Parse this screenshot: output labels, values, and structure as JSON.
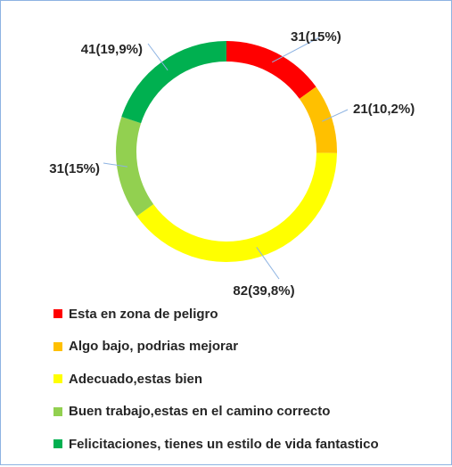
{
  "chart_data": {
    "type": "pie",
    "donut": true,
    "categories": [
      "Esta en zona de peligro",
      "Algo bajo, podrias mejorar",
      "Adecuado,estas bien",
      "Buen trabajo,estas en el camino correcto",
      "Felicitaciones, tienes un estilo de vida fantastico"
    ],
    "values": [
      31,
      21,
      82,
      31,
      41
    ],
    "data_labels": [
      "31(15%)",
      "21(10,2%)",
      "82(39,8%)",
      "31(15%)",
      "41(19,9%)"
    ],
    "colors": [
      "#ff0000",
      "#ffc000",
      "#ffff00",
      "#92d050",
      "#00b050"
    ],
    "legend_position": "bottom"
  },
  "colors": {
    "border": "#8db3e2",
    "leader_line": "#8db3e2",
    "text": "#262626"
  }
}
